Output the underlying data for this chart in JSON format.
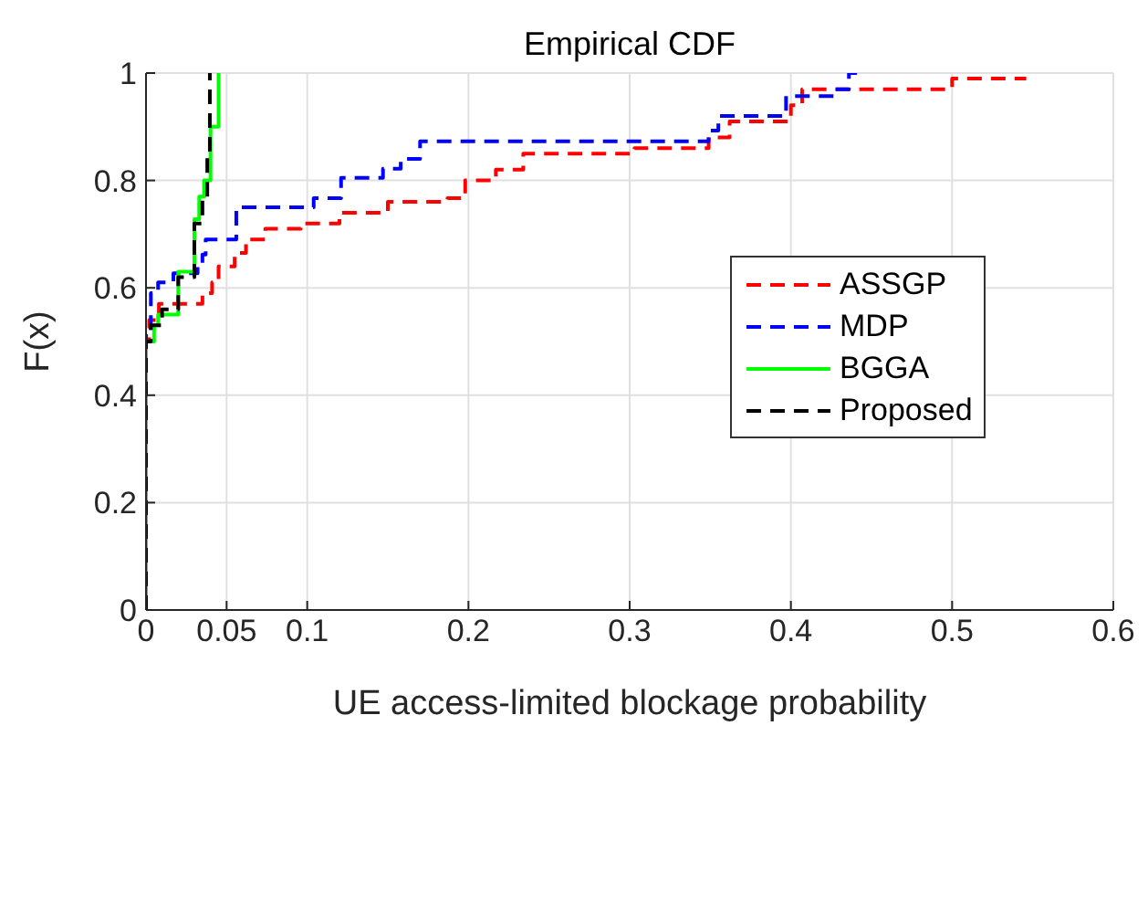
{
  "chart_data": {
    "type": "step",
    "title": "Empirical CDF",
    "xlabel": "UE access-limited blockage probability",
    "ylabel": "F(x)",
    "xlim": [
      0,
      0.6
    ],
    "xticks": [
      0,
      0.05,
      0.1,
      0.2,
      0.3,
      0.4,
      0.5,
      0.6
    ],
    "ylim": [
      0,
      1
    ],
    "yticks": [
      0,
      0.2,
      0.4,
      0.6,
      0.8,
      1
    ],
    "grid": true,
    "legend": "right",
    "marker": "none",
    "series": [
      {
        "name": "ASSGP",
        "color": "#ff0000",
        "line_style": "dashed",
        "x": [
          0,
          0,
          0.002,
          0.008,
          0.032,
          0.035,
          0.041,
          0.045,
          0.055,
          0.062,
          0.074,
          0.096,
          0.12,
          0.15,
          0.187,
          0.198,
          0.217,
          0.234,
          0.303,
          0.349,
          0.362,
          0.4,
          0.407,
          0.5,
          0.546
        ],
        "values": [
          0,
          0.5,
          0.54,
          0.57,
          0.57,
          0.59,
          0.61,
          0.64,
          0.665,
          0.69,
          0.71,
          0.72,
          0.74,
          0.76,
          0.767,
          0.8,
          0.82,
          0.85,
          0.86,
          0.88,
          0.91,
          0.94,
          0.97,
          0.99,
          0.99
        ]
      },
      {
        "name": "MDP",
        "color": "#0000ff",
        "line_style": "dashed",
        "x": [
          0,
          0,
          0.003,
          0.0075,
          0.017,
          0.032,
          0.035,
          0.037,
          0.056,
          0.104,
          0.121,
          0.147,
          0.158,
          0.17,
          0.349,
          0.355,
          0.362,
          0.397,
          0.427,
          0.436,
          0.441
        ],
        "values": [
          0,
          0.51,
          0.59,
          0.61,
          0.627,
          0.642,
          0.662,
          0.69,
          0.75,
          0.767,
          0.805,
          0.822,
          0.84,
          0.873,
          0.893,
          0.92,
          0.92,
          0.957,
          0.97,
          1,
          1
        ]
      },
      {
        "name": "BGGA",
        "color": "#00ff00",
        "line_style": "solid",
        "x": [
          0,
          0,
          0.005,
          0.0075,
          0.02,
          0.03,
          0.033,
          0.036,
          0.04,
          0.045
        ],
        "values": [
          0,
          0.5,
          0.53,
          0.55,
          0.63,
          0.728,
          0.77,
          0.8,
          0.9,
          1
        ]
      },
      {
        "name": "Proposed",
        "color": "#000000",
        "line_style": "dashed",
        "x": [
          0,
          0,
          0.003,
          0.01,
          0.02,
          0.03,
          0.035,
          0.038,
          0.0396,
          0.0396
        ],
        "values": [
          0,
          0.5,
          0.53,
          0.56,
          0.62,
          0.72,
          0.77,
          0.85,
          0.9,
          1
        ]
      }
    ]
  }
}
